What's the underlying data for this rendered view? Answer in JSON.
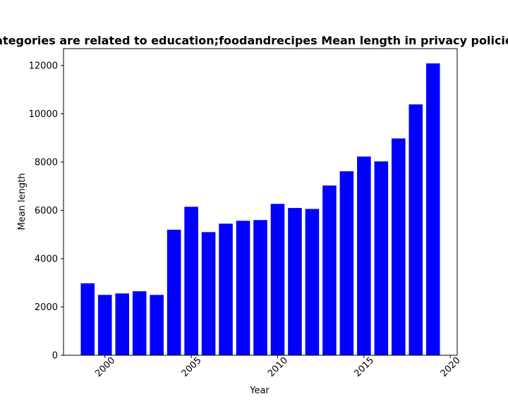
{
  "chart_data": {
    "type": "bar",
    "title": "ategories are related to education;foodandrecipes Mean length in privacy policie",
    "xlabel": "Year",
    "ylabel": "Mean length",
    "x": [
      1999,
      2000,
      2001,
      2002,
      2003,
      2004,
      2005,
      2006,
      2007,
      2008,
      2009,
      2010,
      2011,
      2012,
      2013,
      2014,
      2015,
      2016,
      2017,
      2018,
      2019
    ],
    "values": [
      2980,
      2500,
      2560,
      2650,
      2500,
      5200,
      6150,
      5100,
      5450,
      5570,
      5600,
      6270,
      6100,
      6060,
      7030,
      7620,
      8230,
      8030,
      8980,
      10390,
      12090
    ],
    "xlim": [
      1997.6,
      2020.4
    ],
    "ylim": [
      0,
      12700
    ],
    "xticks": [
      2000,
      2005,
      2010,
      2015,
      2020
    ],
    "xtick_labels": [
      "2000",
      "2005",
      "2010",
      "2015",
      "2020"
    ],
    "yticks": [
      0,
      2000,
      4000,
      6000,
      8000,
      10000,
      12000
    ],
    "ytick_labels": [
      "0",
      "2000",
      "4000",
      "6000",
      "8000",
      "10000",
      "12000"
    ],
    "bar_color": "#0000ff",
    "grid": false,
    "legend": "none"
  }
}
